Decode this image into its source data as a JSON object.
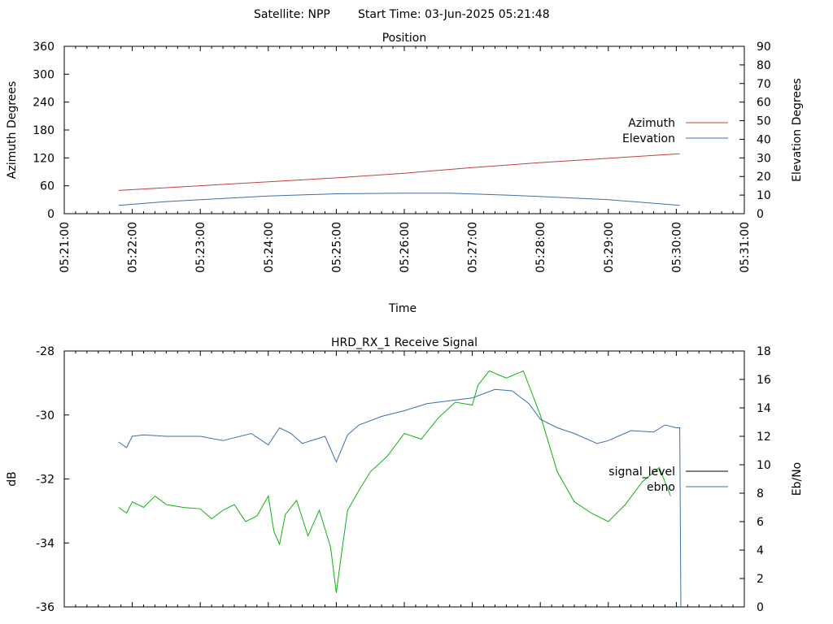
{
  "header": {
    "satellite_label": "Satellite: NPP",
    "start_time_label": "Start Time: 03-Jun-2025 05:21:48"
  },
  "chart_data": [
    {
      "type": "line",
      "title": "Position",
      "xlabel": "Time",
      "ylabel": "Azimuth Degrees",
      "y2label": "Elevation Degrees",
      "x_ticks": [
        "05:21:00",
        "05:22:00",
        "05:23:00",
        "05:24:00",
        "05:25:00",
        "05:26:00",
        "05:27:00",
        "05:28:00",
        "05:29:00",
        "05:30:00",
        "05:31:00"
      ],
      "xlim": [
        "05:21:00",
        "05:31:00"
      ],
      "ylim": [
        0,
        360
      ],
      "y_ticks": [
        0,
        60,
        120,
        180,
        240,
        300,
        360
      ],
      "y2lim": [
        0,
        90
      ],
      "y2_ticks": [
        0,
        10,
        20,
        30,
        40,
        50,
        60,
        70,
        80,
        90
      ],
      "grid": false,
      "legend": "right",
      "series": [
        {
          "name": "Azimuth",
          "axis": "left",
          "color": "#c04040",
          "x": [
            "05:21:48",
            "05:25:00",
            "05:26:00",
            "05:27:00",
            "05:28:00",
            "05:30:03"
          ],
          "y": [
            50,
            77,
            87,
            99,
            110,
            129
          ]
        },
        {
          "name": "Elevation",
          "axis": "right",
          "color": "#3d6fa8",
          "x": [
            "05:21:48",
            "05:22:30",
            "05:23:00",
            "05:24:00",
            "05:25:00",
            "05:26:00",
            "05:26:40",
            "05:27:30",
            "05:28:00",
            "05:29:00",
            "05:30:03"
          ],
          "y": [
            4.5,
            6.5,
            7.5,
            9.5,
            10.7,
            11.0,
            11.0,
            10.0,
            9.2,
            7.5,
            4.5
          ]
        }
      ]
    },
    {
      "type": "line",
      "title": "HRD_RX_1 Receive Signal",
      "ylabel": "dB",
      "y2label": "Eb/No",
      "xlim": [
        "05:21:00",
        "05:31:00"
      ],
      "ylim": [
        -36,
        -28
      ],
      "y_ticks": [
        -28,
        -30,
        -32,
        -34,
        -36
      ],
      "y2lim": [
        0,
        18
      ],
      "y2_ticks": [
        0,
        2,
        4,
        6,
        8,
        10,
        12,
        14,
        16,
        18
      ],
      "grid": false,
      "legend": "right",
      "series": [
        {
          "name": "signal_level",
          "axis": "left",
          "color": "#000000",
          "x": [],
          "y": []
        },
        {
          "name": "ebno",
          "axis": "right",
          "color": "#3d6fa8",
          "x": [
            "05:21:48",
            "05:21:55",
            "05:22:00",
            "05:22:10",
            "05:22:30",
            "05:23:00",
            "05:23:20",
            "05:23:45",
            "05:24:00",
            "05:24:10",
            "05:24:20",
            "05:24:30",
            "05:24:50",
            "05:25:00",
            "05:25:10",
            "05:25:20",
            "05:25:40",
            "05:26:00",
            "05:26:20",
            "05:26:40",
            "05:27:00",
            "05:27:10",
            "05:27:20",
            "05:27:35",
            "05:27:50",
            "05:28:00",
            "05:28:15",
            "05:28:30",
            "05:28:50",
            "05:29:00",
            "05:29:20",
            "05:29:40",
            "05:29:50",
            "05:30:00",
            "05:30:03",
            "05:30:04"
          ],
          "y": [
            11.6,
            11.2,
            12.0,
            12.1,
            12.0,
            12.0,
            11.7,
            12.2,
            11.4,
            12.6,
            12.2,
            11.5,
            12.0,
            10.2,
            12.1,
            12.8,
            13.4,
            13.8,
            14.3,
            14.5,
            14.7,
            15.0,
            15.3,
            15.2,
            14.3,
            13.2,
            12.6,
            12.2,
            11.5,
            11.7,
            12.4,
            12.3,
            12.8,
            12.6,
            12.6,
            0
          ]
        },
        {
          "name": "",
          "axis": "right",
          "color": "#10b010",
          "x": [
            "05:21:48",
            "05:21:55",
            "05:22:00",
            "05:22:10",
            "05:22:20",
            "05:22:30",
            "05:22:45",
            "05:23:00",
            "05:23:10",
            "05:23:20",
            "05:23:30",
            "05:23:40",
            "05:23:50",
            "05:24:00",
            "05:24:05",
            "05:24:10",
            "05:24:15",
            "05:24:25",
            "05:24:35",
            "05:24:45",
            "05:24:55",
            "05:25:00",
            "05:25:05",
            "05:25:10",
            "05:25:20",
            "05:25:30",
            "05:25:45",
            "05:26:00",
            "05:26:15",
            "05:26:30",
            "05:26:45",
            "05:27:00",
            "05:27:05",
            "05:27:15",
            "05:27:30",
            "05:27:45",
            "05:28:00",
            "05:28:15",
            "05:28:30",
            "05:28:45",
            "05:29:00",
            "05:29:15",
            "05:29:30",
            "05:29:45",
            "05:29:55"
          ],
          "y": [
            7.0,
            6.6,
            7.4,
            7.0,
            7.8,
            7.2,
            7.0,
            6.9,
            6.2,
            6.8,
            7.2,
            6.0,
            6.4,
            7.8,
            5.3,
            4.4,
            6.5,
            7.5,
            5.0,
            6.8,
            4.2,
            1.0,
            4.0,
            6.8,
            8.2,
            9.5,
            10.6,
            12.2,
            11.8,
            13.3,
            14.4,
            14.2,
            15.6,
            16.6,
            16.1,
            16.6,
            13.5,
            9.5,
            7.4,
            6.6,
            6.0,
            7.2,
            8.8,
            9.8,
            7.8
          ]
        }
      ]
    }
  ]
}
